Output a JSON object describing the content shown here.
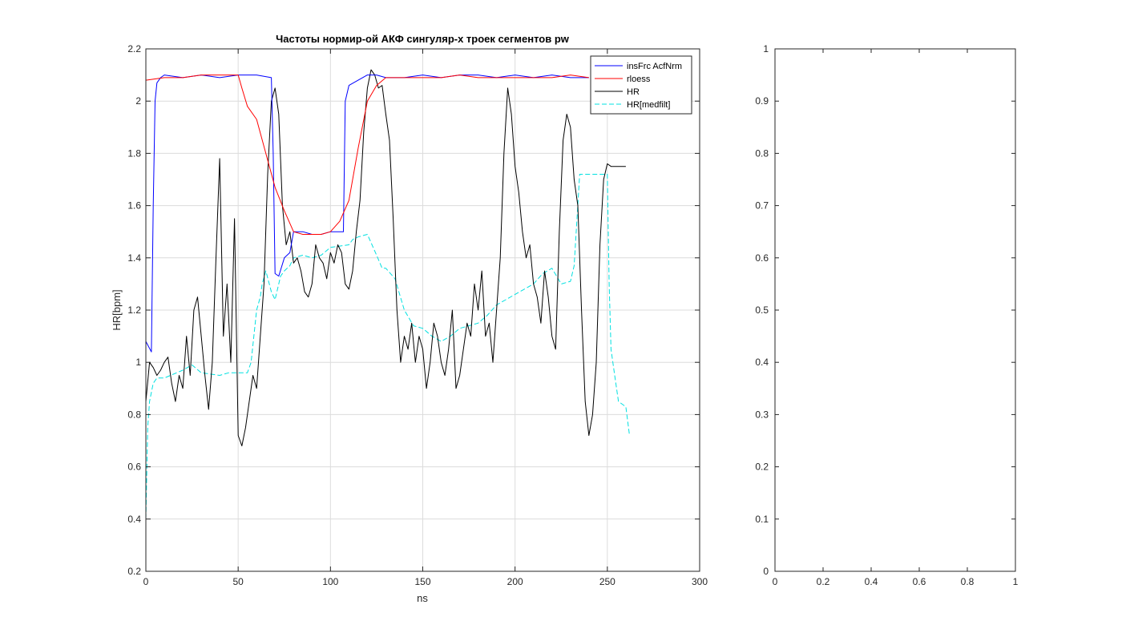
{
  "chart_data": [
    {
      "type": "line",
      "title": "Частоты нормир-ой АКФ сингуляр-х троек сегментов pw",
      "xlabel": "ns",
      "ylabel": "HR[bpm]",
      "xlim": [
        0,
        300
      ],
      "ylim": [
        0.2,
        2.2
      ],
      "xticks": [
        "0",
        "50",
        "100",
        "150",
        "200",
        "250",
        "300"
      ],
      "yticks": [
        "0.2",
        "0.4",
        "0.6",
        "0.8",
        "1",
        "1.2",
        "1.4",
        "1.6",
        "1.8",
        "2",
        "2.2"
      ],
      "grid": true,
      "legend_position": "top-right",
      "series": [
        {
          "name": "insFrc AcfNrm",
          "color": "#0000ff",
          "style": "solid",
          "x": [
            0,
            3,
            4,
            5,
            6,
            8,
            10,
            20,
            30,
            40,
            50,
            60,
            68,
            69,
            70,
            72,
            75,
            78,
            80,
            85,
            90,
            95,
            100,
            107,
            108,
            110,
            115,
            120,
            125,
            130,
            140,
            150,
            160,
            170,
            180,
            190,
            200,
            210,
            220,
            230,
            240
          ],
          "y": [
            1.08,
            1.04,
            1.6,
            2.0,
            2.07,
            2.09,
            2.1,
            2.09,
            2.1,
            2.09,
            2.1,
            2.1,
            2.09,
            1.8,
            1.34,
            1.33,
            1.4,
            1.42,
            1.5,
            1.5,
            1.49,
            1.49,
            1.5,
            1.5,
            2.0,
            2.06,
            2.08,
            2.1,
            2.1,
            2.09,
            2.09,
            2.1,
            2.09,
            2.1,
            2.1,
            2.09,
            2.1,
            2.09,
            2.1,
            2.09,
            2.09
          ]
        },
        {
          "name": "rloess",
          "color": "#ff0000",
          "style": "solid",
          "x": [
            0,
            10,
            20,
            30,
            40,
            50,
            52,
            55,
            60,
            65,
            70,
            75,
            80,
            85,
            90,
            95,
            100,
            105,
            110,
            115,
            120,
            125,
            130,
            140,
            150,
            160,
            170,
            180,
            190,
            200,
            210,
            220,
            230,
            240
          ],
          "y": [
            2.08,
            2.09,
            2.09,
            2.1,
            2.1,
            2.1,
            2.05,
            1.98,
            1.93,
            1.8,
            1.67,
            1.58,
            1.5,
            1.49,
            1.49,
            1.49,
            1.5,
            1.54,
            1.62,
            1.82,
            2.0,
            2.06,
            2.09,
            2.09,
            2.09,
            2.09,
            2.1,
            2.09,
            2.09,
            2.09,
            2.09,
            2.09,
            2.1,
            2.09
          ]
        },
        {
          "name": "HR",
          "color": "#000000",
          "style": "solid",
          "x": [
            0,
            2,
            4,
            6,
            8,
            10,
            12,
            14,
            16,
            18,
            20,
            22,
            24,
            26,
            28,
            30,
            32,
            34,
            36,
            38,
            40,
            42,
            44,
            46,
            48,
            50,
            52,
            54,
            56,
            58,
            60,
            62,
            64,
            66,
            68,
            70,
            72,
            74,
            76,
            78,
            80,
            82,
            84,
            86,
            88,
            90,
            92,
            94,
            96,
            98,
            100,
            102,
            104,
            106,
            108,
            110,
            112,
            114,
            116,
            118,
            120,
            122,
            124,
            126,
            128,
            130,
            132,
            134,
            136,
            138,
            140,
            142,
            144,
            146,
            148,
            150,
            152,
            154,
            156,
            158,
            160,
            162,
            164,
            166,
            168,
            170,
            172,
            174,
            176,
            178,
            180,
            182,
            184,
            186,
            188,
            190,
            192,
            194,
            196,
            198,
            200,
            202,
            204,
            206,
            208,
            210,
            212,
            214,
            216,
            218,
            220,
            222,
            224,
            226,
            228,
            230,
            232,
            234,
            236,
            238,
            240,
            242,
            244,
            246,
            248,
            250,
            252,
            254,
            256,
            258,
            260
          ],
          "y": [
            0.85,
            1.0,
            0.98,
            0.95,
            0.97,
            1.0,
            1.02,
            0.92,
            0.85,
            0.95,
            0.9,
            1.1,
            0.95,
            1.2,
            1.25,
            1.1,
            0.95,
            0.82,
            1.0,
            1.4,
            1.78,
            1.1,
            1.3,
            1.0,
            1.55,
            0.72,
            0.68,
            0.75,
            0.85,
            0.95,
            0.9,
            1.1,
            1.3,
            1.72,
            2.0,
            2.05,
            1.95,
            1.6,
            1.45,
            1.5,
            1.38,
            1.4,
            1.35,
            1.27,
            1.25,
            1.3,
            1.45,
            1.4,
            1.38,
            1.32,
            1.42,
            1.38,
            1.45,
            1.42,
            1.3,
            1.28,
            1.35,
            1.5,
            1.62,
            1.88,
            2.05,
            2.12,
            2.1,
            2.05,
            2.06,
            1.95,
            1.85,
            1.55,
            1.2,
            1.0,
            1.1,
            1.05,
            1.15,
            1.0,
            1.1,
            1.05,
            0.9,
            1.0,
            1.15,
            1.1,
            1.0,
            0.95,
            1.05,
            1.2,
            0.9,
            0.95,
            1.05,
            1.15,
            1.1,
            1.3,
            1.2,
            1.35,
            1.1,
            1.15,
            1.0,
            1.2,
            1.4,
            1.8,
            2.05,
            1.95,
            1.75,
            1.65,
            1.5,
            1.4,
            1.45,
            1.3,
            1.25,
            1.15,
            1.35,
            1.25,
            1.1,
            1.05,
            1.5,
            1.85,
            1.95,
            1.9,
            1.7,
            1.6,
            1.2,
            0.85,
            0.72,
            0.8,
            1.0,
            1.45,
            1.7,
            1.76,
            1.75,
            1.75,
            1.75,
            1.75,
            1.75
          ]
        },
        {
          "name": "HR[medfilt]",
          "color": "#00e0e0",
          "style": "dashed",
          "x": [
            0,
            1,
            2,
            4,
            6,
            10,
            20,
            25,
            30,
            40,
            45,
            55,
            57,
            60,
            62,
            63,
            65,
            68,
            70,
            73,
            75,
            78,
            80,
            85,
            90,
            95,
            100,
            110,
            112,
            115,
            120,
            125,
            128,
            130,
            135,
            140,
            145,
            150,
            155,
            160,
            165,
            170,
            175,
            180,
            185,
            190,
            195,
            200,
            205,
            210,
            215,
            220,
            225,
            230,
            232,
            235,
            240,
            245,
            248,
            250,
            251,
            252,
            254,
            256,
            258,
            260,
            262
          ],
          "y": [
            0.4,
            0.75,
            0.85,
            0.92,
            0.94,
            0.94,
            0.97,
            0.99,
            0.96,
            0.95,
            0.96,
            0.96,
            1.0,
            1.2,
            1.25,
            1.3,
            1.35,
            1.27,
            1.24,
            1.33,
            1.35,
            1.37,
            1.4,
            1.41,
            1.4,
            1.41,
            1.44,
            1.45,
            1.47,
            1.48,
            1.49,
            1.41,
            1.36,
            1.36,
            1.32,
            1.2,
            1.14,
            1.13,
            1.1,
            1.08,
            1.1,
            1.13,
            1.14,
            1.15,
            1.18,
            1.22,
            1.24,
            1.26,
            1.28,
            1.3,
            1.34,
            1.36,
            1.3,
            1.31,
            1.37,
            1.72,
            1.72,
            1.72,
            1.72,
            1.72,
            1.3,
            1.05,
            0.95,
            0.85,
            0.84,
            0.83,
            0.72
          ]
        }
      ]
    },
    {
      "type": "line",
      "title": "",
      "xlabel": "",
      "ylabel": "",
      "xlim": [
        0,
        1
      ],
      "ylim": [
        0,
        1
      ],
      "xticks": [
        "0",
        "0.2",
        "0.4",
        "0.6",
        "0.8",
        "1"
      ],
      "yticks": [
        "0",
        "0.1",
        "0.2",
        "0.3",
        "0.4",
        "0.5",
        "0.6",
        "0.7",
        "0.8",
        "0.9",
        "1"
      ],
      "grid": false,
      "series": []
    }
  ]
}
